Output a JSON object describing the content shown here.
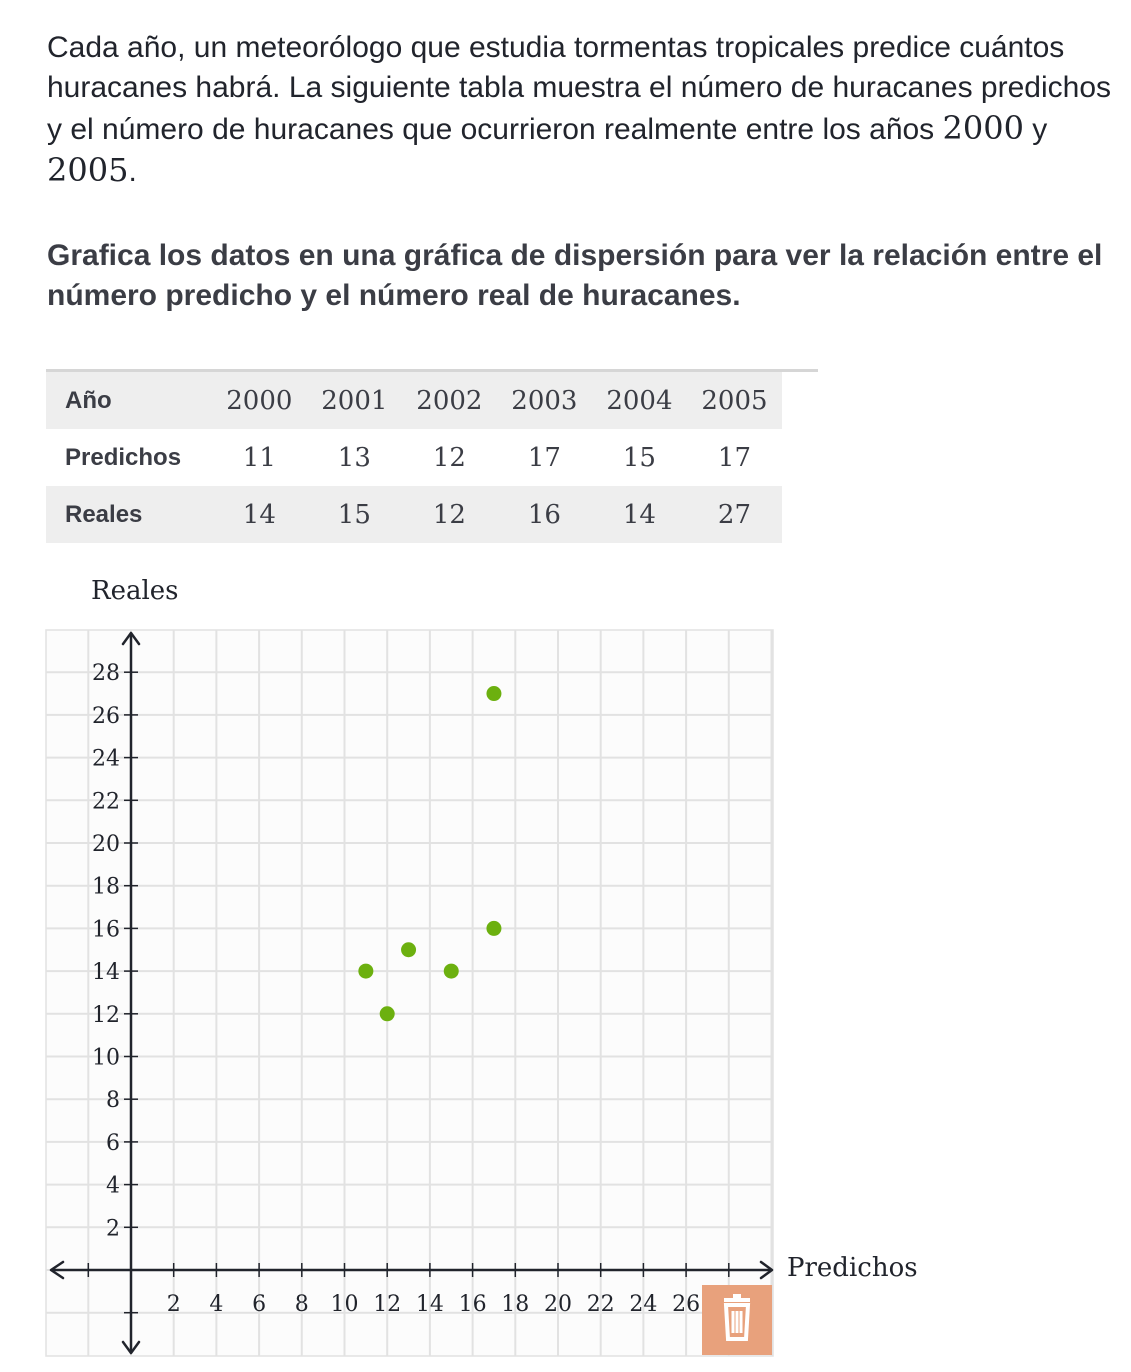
{
  "intro": {
    "text_before": "Cada año, un meteorólogo que estudia tormentas tropicales predice cuántos huracanes habrá. La siguiente tabla muestra el número de huracanes predichos y el número de huracanes que ocurrieron realmente entre los años ",
    "year_start": "2000",
    "connector": " y ",
    "year_end": "2005",
    "period": "."
  },
  "prompt": "Grafica los datos en una gráfica de dispersión para ver la relación entre el número predicho y el número real de huracanes.",
  "table": {
    "header": "Año",
    "years": [
      "2000",
      "2001",
      "2002",
      "2003",
      "2004",
      "2005"
    ],
    "rows": [
      {
        "label": "Predichos",
        "values": [
          "11",
          "13",
          "12",
          "17",
          "15",
          "17"
        ]
      },
      {
        "label": "Reales",
        "values": [
          "14",
          "15",
          "12",
          "16",
          "14",
          "27"
        ]
      }
    ]
  },
  "graph": {
    "y_label": "Reales",
    "x_label": "Predichos",
    "point_color": "#6cb00f",
    "grid_color": "#e2e2e2",
    "axis_color": "#21242c",
    "trash_color": "#e8a17c",
    "trash_icon": "trash-icon"
  },
  "chart_data": {
    "type": "scatter",
    "title": "",
    "xlabel": "Predichos",
    "ylabel": "Reales",
    "xlim": [
      -4,
      30
    ],
    "ylim": [
      -4,
      30
    ],
    "x_ticks": [
      2,
      4,
      6,
      8,
      10,
      12,
      14,
      16,
      18,
      20,
      22,
      24,
      26,
      28
    ],
    "y_ticks": [
      2,
      4,
      6,
      8,
      10,
      12,
      14,
      16,
      18,
      20,
      22,
      24,
      26,
      28
    ],
    "grid": true,
    "series": [
      {
        "points": [
          {
            "x": 11,
            "y": 14
          },
          {
            "x": 13,
            "y": 15
          },
          {
            "x": 12,
            "y": 12
          },
          {
            "x": 17,
            "y": 16
          },
          {
            "x": 15,
            "y": 14
          },
          {
            "x": 17,
            "y": 27
          }
        ]
      }
    ]
  }
}
